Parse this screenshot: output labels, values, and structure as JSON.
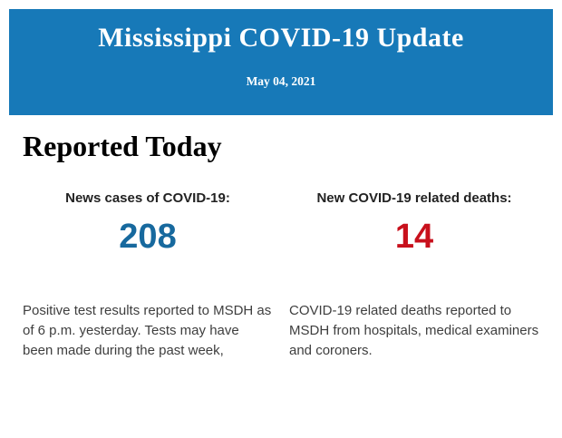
{
  "header": {
    "title": "Mississippi COVID-19 Update",
    "date": "May 04, 2021",
    "background_color": "#1779b8",
    "text_color": "#ffffff"
  },
  "main": {
    "heading": "Reported Today",
    "stats": [
      {
        "label": "News cases of COVID-19:",
        "value": "208",
        "value_color": "#17699e",
        "description": "Positive test results reported to MSDH as of 6 p.m. yesterday. Tests may have been made during the past week,"
      },
      {
        "label": "New COVID-19 related deaths:",
        "value": "14",
        "value_color": "#c8101c",
        "description": "COVID-19 related deaths reported to MSDH from hospitals, medical examiners and coroners."
      }
    ]
  }
}
